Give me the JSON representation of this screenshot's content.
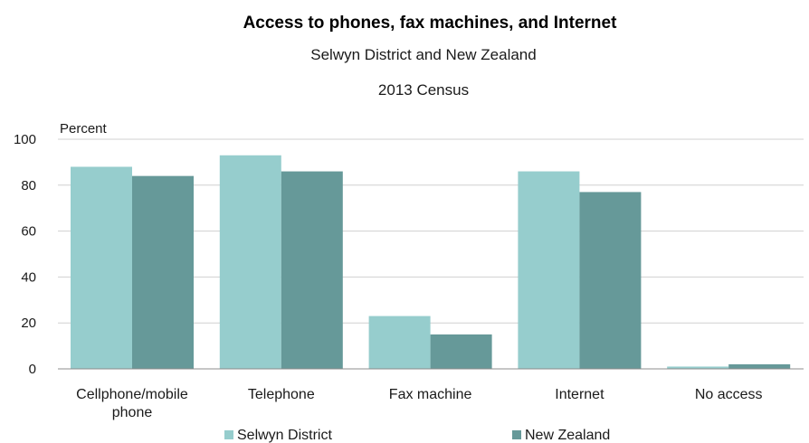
{
  "chart_data": {
    "type": "bar",
    "title": "Access to phones, fax machines, and Internet",
    "subtitle": "Selwyn District and New Zealand",
    "subtitle2": "2013 Census",
    "ylabel": "Percent",
    "xlabel": "",
    "ylim": [
      0,
      100
    ],
    "yticks": [
      0,
      20,
      40,
      60,
      80,
      100
    ],
    "grid": true,
    "legend_position": "bottom",
    "categories": [
      [
        "Cellphone/mobile",
        "phone"
      ],
      [
        "Telephone"
      ],
      [
        "Fax machine"
      ],
      [
        "Internet"
      ],
      [
        "No access"
      ]
    ],
    "series": [
      {
        "name": "Selwyn District",
        "color": "#96cdcd",
        "values": [
          88,
          93,
          23,
          86,
          1
        ]
      },
      {
        "name": "New Zealand",
        "color": "#669999",
        "values": [
          84,
          86,
          15,
          77,
          2
        ]
      }
    ]
  }
}
